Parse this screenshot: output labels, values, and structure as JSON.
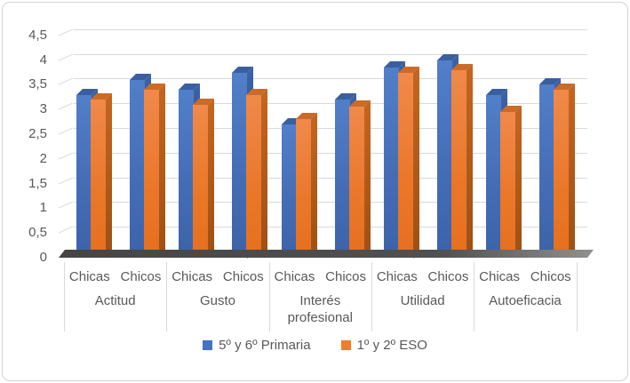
{
  "chart_data": {
    "type": "bar",
    "style": "3d-clustered-column",
    "title": "",
    "categories": [
      "Actitud",
      "Gusto",
      "Interés profesional",
      "Utilidad",
      "Autoeficacia"
    ],
    "sub_categories": [
      "Chicas",
      "Chicos"
    ],
    "cluster_order": [
      "Actitud-Chicas",
      "Actitud-Chicos",
      "Gusto-Chicas",
      "Gusto-Chicos",
      "Interés profesional-Chicas",
      "Interés profesional-Chicos",
      "Utilidad-Chicas",
      "Utilidad-Chicos",
      "Autoeficacia-Chicas",
      "Autoeficacia-Chicos"
    ],
    "series": [
      {
        "name": "5º y 6º Primaria",
        "color": "#4472C4",
        "values": [
          3.3,
          3.6,
          3.4,
          3.75,
          2.7,
          3.2,
          3.85,
          4.0,
          3.3,
          3.5
        ]
      },
      {
        "name": "1º y 2º ESO",
        "color": "#ED7D31",
        "values": [
          3.2,
          3.4,
          3.1,
          3.3,
          2.8,
          3.05,
          3.75,
          3.8,
          2.95,
          3.4
        ]
      }
    ],
    "ylim": [
      0,
      4.5
    ],
    "ytick_step": 0.5,
    "ytick_labels": [
      "0",
      "0,5",
      "1",
      "1,5",
      "2",
      "2,5",
      "3",
      "3,5",
      "4",
      "4,5"
    ],
    "grid": true,
    "legend_position": "bottom"
  },
  "colors": {
    "axis_text": "#595959",
    "gridline": "#d9d9d9",
    "floor": "#4a4a4a",
    "frame_border": "#d2d2d2"
  }
}
